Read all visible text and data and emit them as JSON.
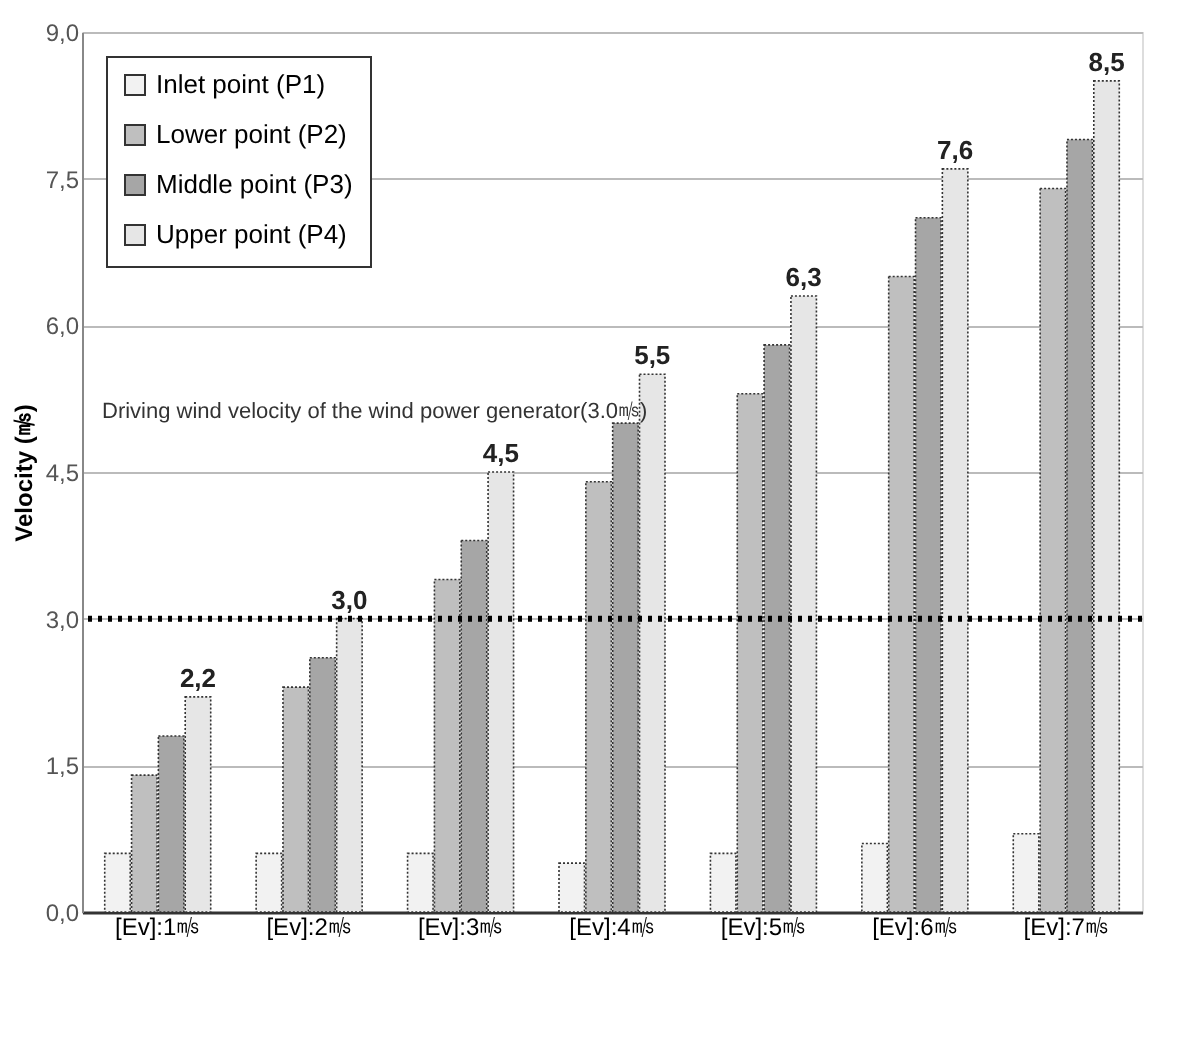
{
  "chart_data": {
    "type": "bar",
    "ylabel": "Velocity (㎧)",
    "categories": [
      "[Ev]:1㎧",
      "[Ev]:2㎧",
      "[Ev]:3㎧",
      "[Ev]:4㎧",
      "[Ev]:5㎧",
      "[Ev]:6㎧",
      "[Ev]:7㎧"
    ],
    "series": [
      {
        "name": "Inlet point (P1)",
        "color": "#f2f2f2",
        "values": [
          0.6,
          0.6,
          0.6,
          0.5,
          0.6,
          0.7,
          0.8
        ]
      },
      {
        "name": "Lower point (P2)",
        "color": "#bfbfbf",
        "values": [
          1.4,
          2.3,
          3.4,
          4.4,
          5.3,
          6.5,
          7.4
        ]
      },
      {
        "name": "Middle point (P3)",
        "color": "#a6a6a6",
        "values": [
          1.8,
          2.6,
          3.8,
          5.0,
          5.8,
          7.1,
          7.9
        ]
      },
      {
        "name": "Upper point (P4)",
        "color": "#e6e6e6",
        "values": [
          2.2,
          3.0,
          4.5,
          5.5,
          6.3,
          7.6,
          8.5
        ],
        "value_labels": [
          "2,2",
          "3,0",
          "4,5",
          "5,5",
          "6,3",
          "7,6",
          "8,5"
        ]
      }
    ],
    "ylim": [
      0,
      9
    ],
    "yticks": [
      {
        "value": 0,
        "label": "0,0"
      },
      {
        "value": 1.5,
        "label": "1,5"
      },
      {
        "value": 3,
        "label": "3,0"
      },
      {
        "value": 4.5,
        "label": "4,5"
      },
      {
        "value": 6,
        "label": "6,0"
      },
      {
        "value": 7.5,
        "label": "7,5"
      },
      {
        "value": 9,
        "label": "9,0"
      }
    ],
    "ref_lines": [
      {
        "axis": "y",
        "value": 3.0,
        "color": "#000000",
        "line_style": "dotted"
      }
    ],
    "annotations": [
      "Driving wind velocity of the wind power generator(3.0㎧)"
    ],
    "grid": "y",
    "legend": "top left"
  }
}
